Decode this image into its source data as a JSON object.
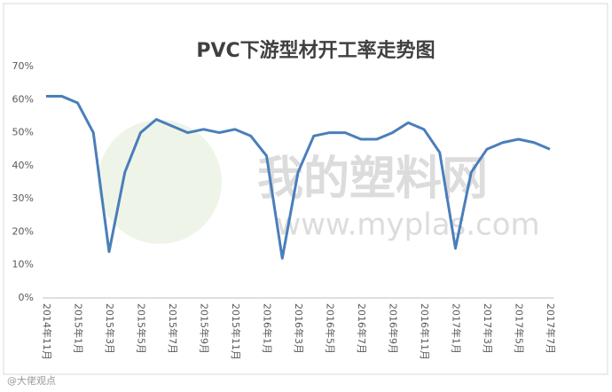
{
  "chart_data": {
    "type": "line",
    "title": "PVC下游型材开工率走势图",
    "watermark": "我的塑料网",
    "watermark_url": "www.myplas.com",
    "corner_mark": "@大佬观点",
    "categories": [
      "2014年11月",
      null,
      "2015年1月",
      null,
      "2015年3月",
      null,
      "2015年5月",
      null,
      "2015年7月",
      null,
      "2015年9月",
      null,
      "2015年11月",
      null,
      "2016年1月",
      null,
      "2016年3月",
      null,
      "2016年5月",
      null,
      "2016年7月",
      null,
      "2016年9月",
      null,
      "2016年11月",
      null,
      "2017年1月",
      null,
      "2017年3月",
      null,
      "2017年5月",
      null,
      "2017年7月"
    ],
    "series": [
      {
        "color": "#4a7ebb",
        "values": [
          61,
          61,
          59,
          50,
          14,
          38,
          50,
          54,
          52,
          50,
          51,
          50,
          51,
          49,
          43,
          12,
          38,
          49,
          50,
          50,
          48,
          48,
          50,
          53,
          51,
          44,
          15,
          38,
          45,
          47,
          48,
          47,
          45
        ]
      }
    ],
    "ylim": [
      0,
      70
    ],
    "yticks": [
      {
        "value": 0,
        "label": "0%"
      },
      {
        "value": 10,
        "label": "10%"
      },
      {
        "value": 20,
        "label": "20%"
      },
      {
        "value": 30,
        "label": "30%"
      },
      {
        "value": 40,
        "label": "40%"
      },
      {
        "value": 50,
        "label": "50%"
      },
      {
        "value": 60,
        "label": "60%"
      },
      {
        "value": 70,
        "label": "70%"
      }
    ],
    "grid": false
  }
}
